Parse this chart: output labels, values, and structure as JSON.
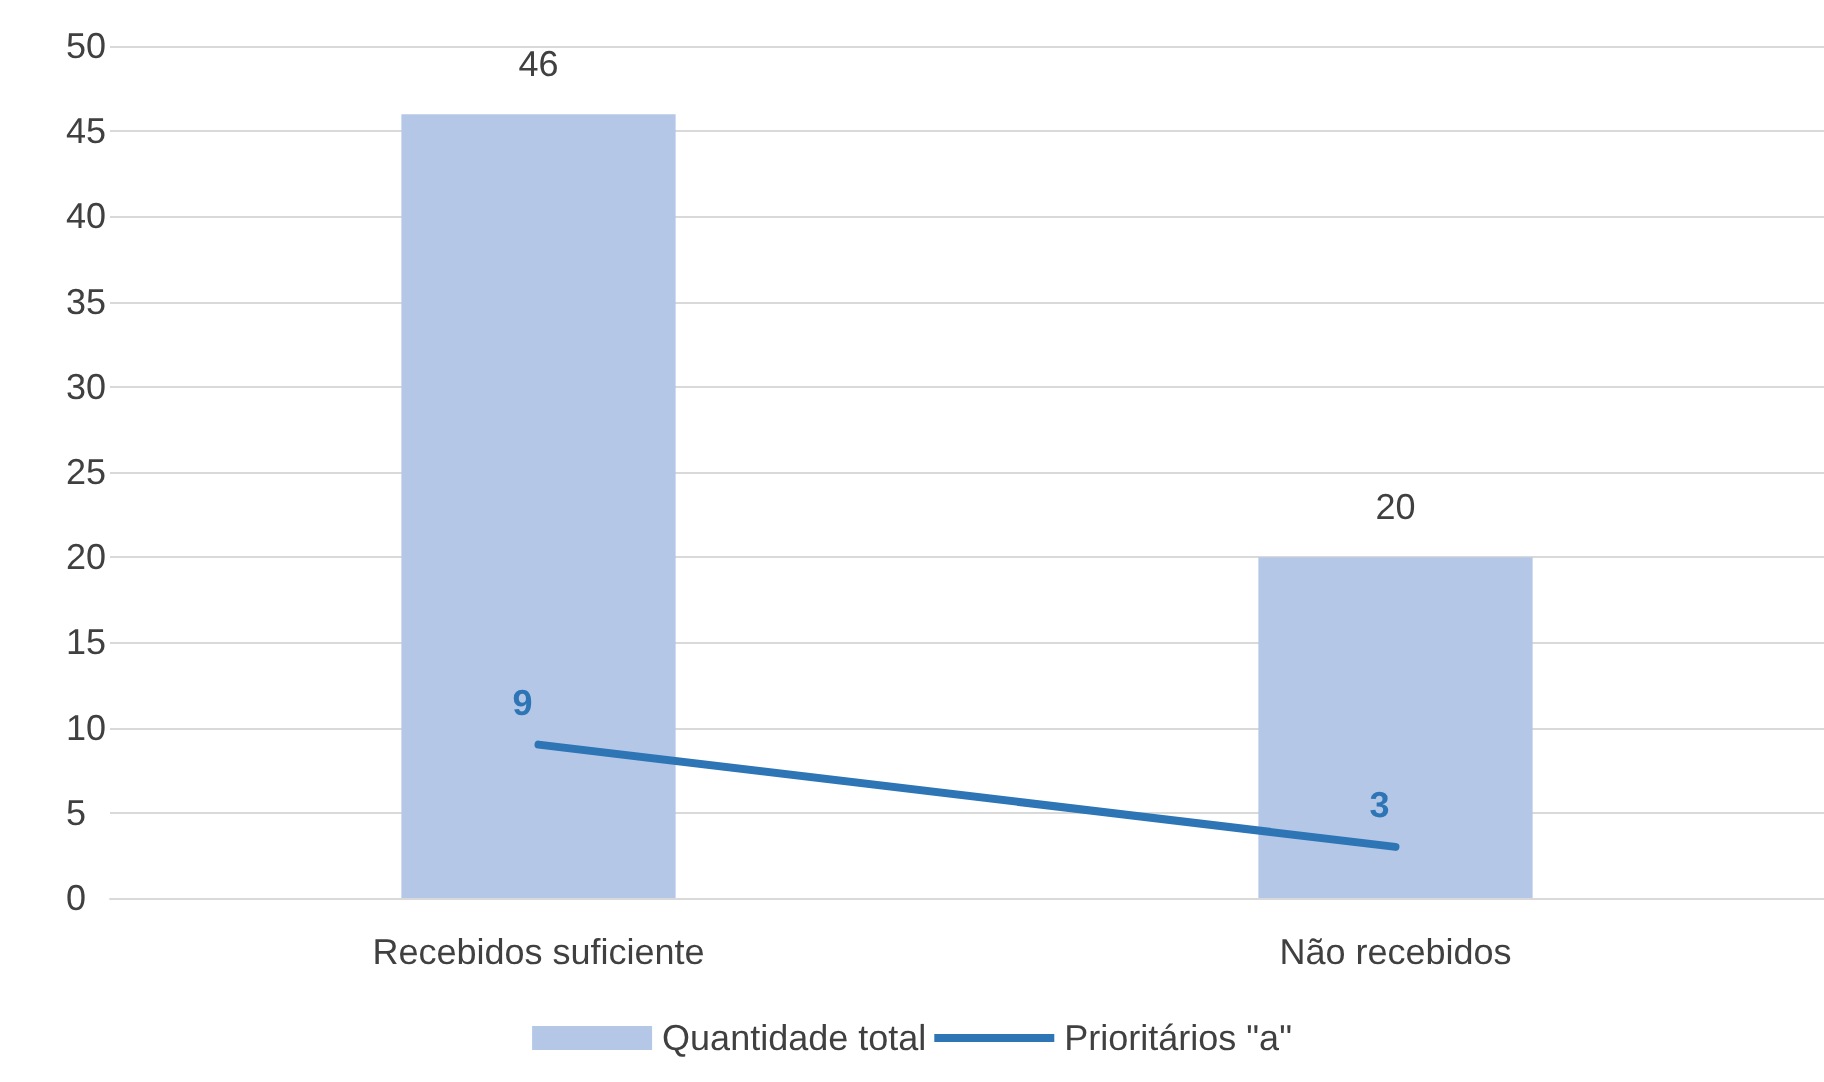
{
  "chart_data": {
    "type": "bar",
    "categories": [
      "Recebidos suficiente",
      "Não recebidos"
    ],
    "series": [
      {
        "name": "Quantidade total",
        "color": "#b4c7e7",
        "values": [
          46,
          20
        ]
      },
      {
        "name": "Prioritários \"a\"",
        "type": "line",
        "color": "#2e75b6",
        "values": [
          9,
          3
        ]
      }
    ],
    "ylim": [
      0,
      50
    ],
    "yticks": [
      0,
      5,
      10,
      15,
      20,
      25,
      30,
      35,
      40,
      45,
      50
    ],
    "grid": "y",
    "legend": "bottom",
    "data_labels": true,
    "marker": "none"
  }
}
